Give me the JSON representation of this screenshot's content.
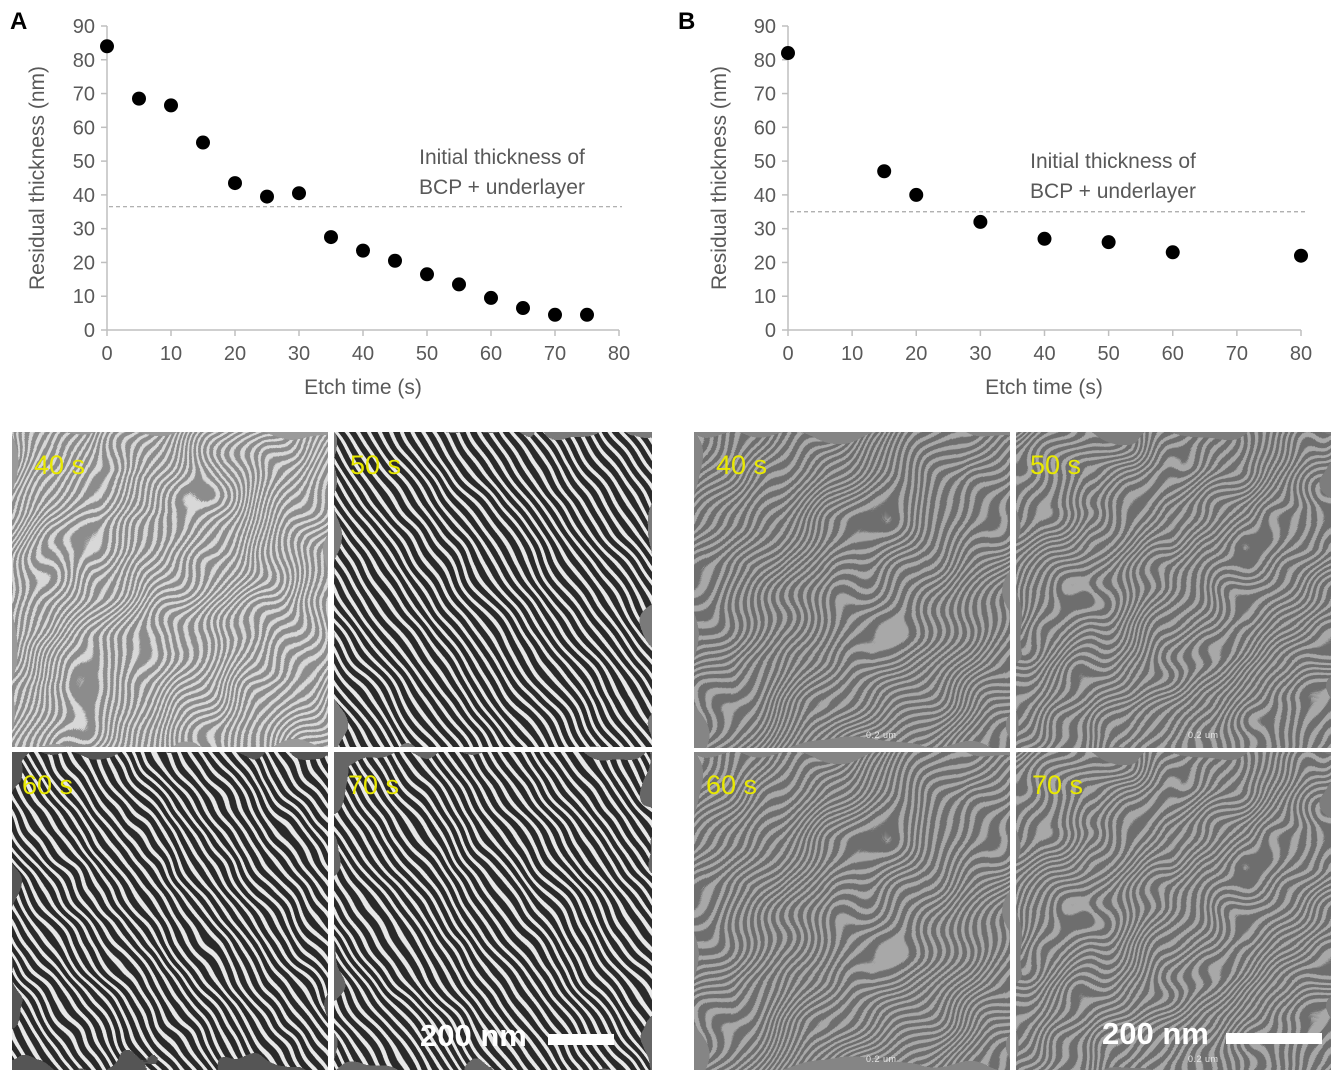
{
  "panels": [
    {
      "letter": "A",
      "annotation_line1": "Initial thickness of",
      "annotation_line2": "BCP + underlayer",
      "images": [
        {
          "time": "40 s"
        },
        {
          "time": "50 s"
        },
        {
          "time": "60 s"
        },
        {
          "time": "70 s"
        }
      ],
      "scale_bar_label": "200 nm"
    },
    {
      "letter": "B",
      "annotation_line1": "Initial thickness of",
      "annotation_line2": "BCP + underlayer",
      "images": [
        {
          "time": "40 s"
        },
        {
          "time": "50 s"
        },
        {
          "time": "60 s"
        },
        {
          "time": "70 s"
        }
      ],
      "scale_bar_label": "200 nm",
      "sem_marker_text": "0.2 um"
    }
  ],
  "chart_data": [
    {
      "type": "scatter",
      "xlabel": "Etch time (s)",
      "ylabel": "Residual thickness (nm)",
      "xlim": [
        0,
        80
      ],
      "ylim": [
        0,
        90
      ],
      "xticks": [
        "0",
        "10",
        "20",
        "30",
        "40",
        "50",
        "60",
        "70",
        "80"
      ],
      "yticks": [
        "0",
        "10",
        "20",
        "30",
        "40",
        "50",
        "60",
        "70",
        "80",
        "90"
      ],
      "reference_line_y": 36.5,
      "grid": false,
      "marker_color": "#000000",
      "x": [
        0,
        5,
        10,
        15,
        20,
        25,
        30,
        35,
        40,
        45,
        50,
        55,
        60,
        65,
        70,
        75
      ],
      "y": [
        84,
        68.5,
        66.5,
        55.5,
        43.5,
        39.5,
        40.5,
        27.5,
        23.5,
        20.5,
        16.5,
        13.5,
        9.5,
        6.5,
        4.5,
        4.5
      ]
    },
    {
      "type": "scatter",
      "xlabel": "Etch time (s)",
      "ylabel": "Residual thickness (nm)",
      "xlim": [
        0,
        80
      ],
      "ylim": [
        0,
        90
      ],
      "xticks": [
        "0",
        "10",
        "20",
        "30",
        "40",
        "50",
        "60",
        "70",
        "80"
      ],
      "yticks": [
        "0",
        "10",
        "20",
        "30",
        "40",
        "50",
        "60",
        "70",
        "80",
        "90"
      ],
      "reference_line_y": 35,
      "grid": false,
      "marker_color": "#000000",
      "x": [
        0,
        15,
        20,
        30,
        40,
        50,
        60,
        80
      ],
      "y": [
        82,
        47,
        40,
        32,
        27,
        26,
        23,
        22
      ]
    }
  ]
}
